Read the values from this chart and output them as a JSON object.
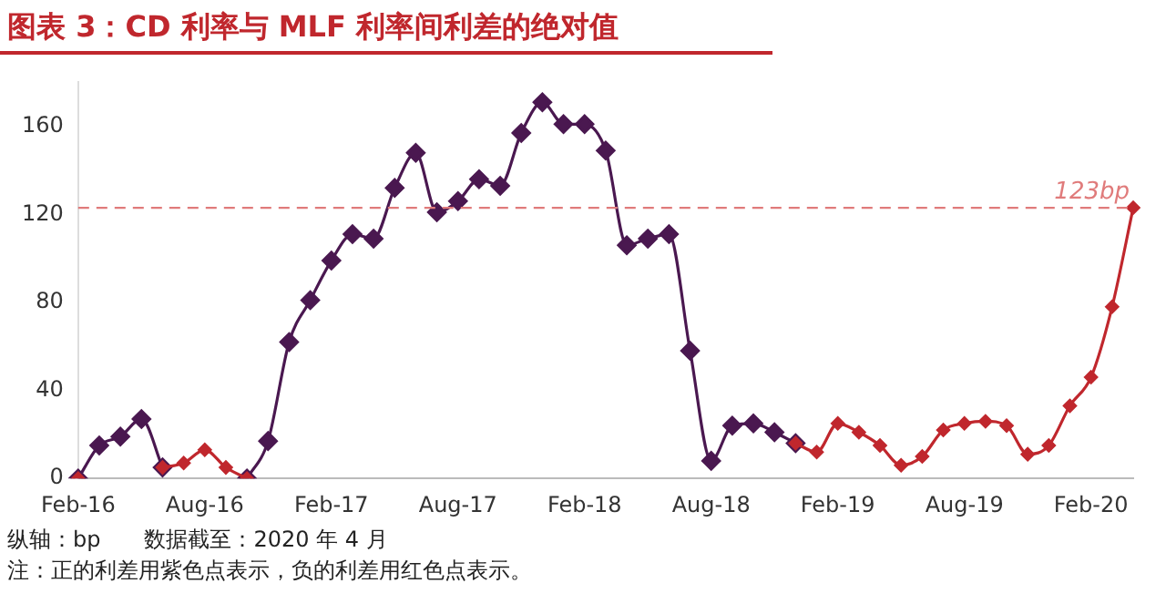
{
  "chart_data": {
    "type": "line",
    "title": "图表 3：CD 利率与 MLF 利率间利差的绝对值",
    "categories": [
      "Feb-16",
      null,
      null,
      null,
      null,
      null,
      "Aug-16",
      null,
      null,
      null,
      null,
      null,
      "Feb-17",
      null,
      null,
      null,
      null,
      null,
      "Aug-17",
      null,
      null,
      null,
      null,
      null,
      "Feb-18",
      null,
      null,
      null,
      null,
      null,
      "Aug-18",
      null,
      null,
      null,
      null,
      null,
      "Feb-19",
      null,
      null,
      null,
      null,
      null,
      "Aug-19",
      null,
      null,
      null,
      null,
      null,
      "Feb-20",
      null,
      null
    ],
    "series": [
      {
        "color": "#c0272d",
        "values": [
          0,
          null,
          null,
          null,
          5,
          7,
          13,
          5,
          0,
          null,
          null,
          null,
          null,
          null,
          null,
          null,
          null,
          null,
          null,
          null,
          null,
          null,
          null,
          null,
          null,
          null,
          null,
          null,
          null,
          null,
          null,
          null,
          null,
          null,
          16,
          12,
          25,
          21,
          15,
          6,
          10,
          22,
          25,
          26,
          24,
          11,
          15,
          33,
          46,
          78,
          123
        ]
      },
      {
        "color": "#4a1850",
        "values": [
          0,
          15,
          19,
          27,
          5,
          null,
          null,
          null,
          0,
          17,
          62,
          81,
          99,
          111,
          109,
          132,
          148,
          121,
          126,
          136,
          133,
          157,
          171,
          161,
          161,
          149,
          106,
          109,
          111,
          58,
          8,
          24,
          25,
          21,
          16,
          null,
          null,
          null,
          null,
          null,
          null,
          null,
          null,
          null,
          null,
          null,
          null,
          null,
          null,
          null,
          null
        ]
      }
    ],
    "ylim": [
      0,
      180
    ],
    "yticks": [
      0,
      40,
      80,
      120,
      160
    ],
    "grid": false,
    "legend": false,
    "marker": "diamond",
    "line_style": "solid",
    "ref_lines": [
      {
        "axis": "y",
        "value": 123,
        "label": "123bp",
        "color": "#e07b7b",
        "line_style": "dashed"
      }
    ],
    "annotations": [
      "纵轴：bp　　数据截至：2020 年 4 月",
      "注：正的利差用紫色点表示，负的利差用红色点表示。"
    ]
  }
}
